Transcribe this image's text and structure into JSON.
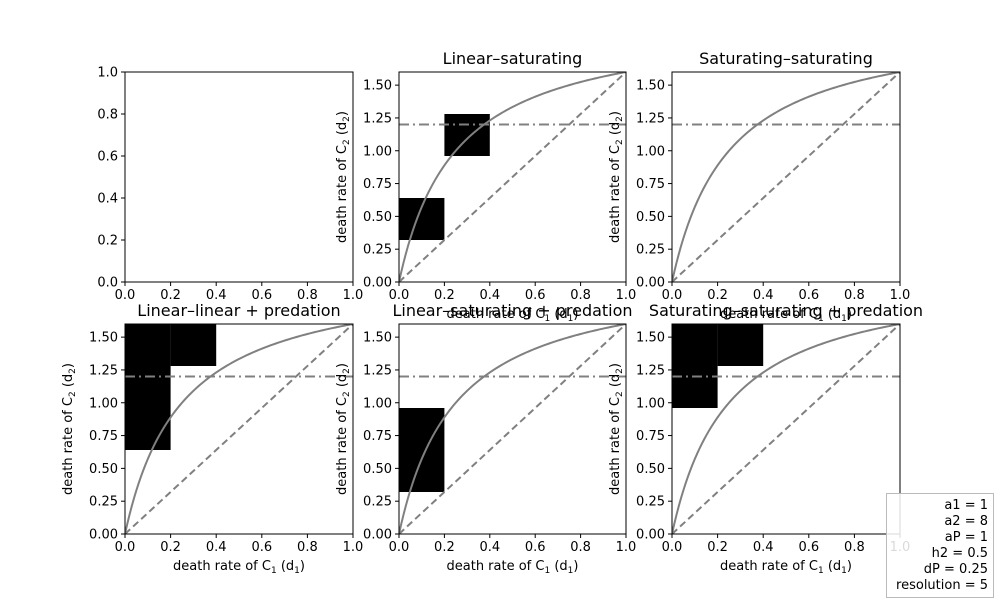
{
  "chart_data": [
    {
      "type": "heatmap",
      "title": "",
      "xlabel": "",
      "ylabel": "",
      "xlim": [
        0,
        1
      ],
      "ylim": [
        0,
        1
      ],
      "xticks": [
        "0.0",
        "0.2",
        "0.4",
        "0.6",
        "0.8",
        "1.0"
      ],
      "yticks": [
        "0.0",
        "0.2",
        "0.4",
        "0.6",
        "0.8",
        "1.0"
      ],
      "cells": [],
      "curves": false
    },
    {
      "type": "heatmap",
      "title": "Linear–saturating",
      "xlabel": "death rate of C₁ (d₁)",
      "ylabel": "death rate of C₂ (d₂)",
      "xlim": [
        0,
        1
      ],
      "ylim": [
        0,
        1.6
      ],
      "xticks": [
        "0.0",
        "0.2",
        "0.4",
        "0.6",
        "0.8",
        "1.0"
      ],
      "yticks": [
        "0.00",
        "0.25",
        "0.50",
        "0.75",
        "1.00",
        "1.25",
        "1.50"
      ],
      "cells": [
        {
          "x0": 0.0,
          "x1": 0.2,
          "y0": 0.32,
          "y1": 0.64
        },
        {
          "x0": 0.2,
          "x1": 0.4,
          "y0": 0.96,
          "y1": 1.28
        }
      ],
      "curves": true
    },
    {
      "type": "heatmap",
      "title": "Saturating–saturating",
      "xlabel": "death rate of C₁ (d₁)",
      "ylabel": "death rate of C₂ (d₂)",
      "xlim": [
        0,
        1
      ],
      "ylim": [
        0,
        1.6
      ],
      "xticks": [
        "0.0",
        "0.2",
        "0.4",
        "0.6",
        "0.8",
        "1.0"
      ],
      "yticks": [
        "0.00",
        "0.25",
        "0.50",
        "0.75",
        "1.00",
        "1.25",
        "1.50"
      ],
      "cells": [],
      "curves": true
    },
    {
      "type": "heatmap",
      "title": "Linear–linear + predation",
      "xlabel": "death rate of C₁ (d₁)",
      "ylabel": "death rate of C₂ (d₂)",
      "xlim": [
        0,
        1
      ],
      "ylim": [
        0,
        1.6
      ],
      "xticks": [
        "0.0",
        "0.2",
        "0.4",
        "0.6",
        "0.8",
        "1.0"
      ],
      "yticks": [
        "0.00",
        "0.25",
        "0.50",
        "0.75",
        "1.00",
        "1.25",
        "1.50"
      ],
      "cells": [
        {
          "x0": 0.0,
          "x1": 0.2,
          "y0": 0.64,
          "y1": 1.6
        },
        {
          "x0": 0.2,
          "x1": 0.4,
          "y0": 1.28,
          "y1": 1.6
        }
      ],
      "curves": true
    },
    {
      "type": "heatmap",
      "title": "Linear–saturating + predation",
      "xlabel": "death rate of C₁ (d₁)",
      "ylabel": "death rate of C₂ (d₂)",
      "xlim": [
        0,
        1
      ],
      "ylim": [
        0,
        1.6
      ],
      "xticks": [
        "0.0",
        "0.2",
        "0.4",
        "0.6",
        "0.8",
        "1.0"
      ],
      "yticks": [
        "0.00",
        "0.25",
        "0.50",
        "0.75",
        "1.00",
        "1.25",
        "1.50"
      ],
      "cells": [
        {
          "x0": 0.0,
          "x1": 0.2,
          "y0": 0.32,
          "y1": 0.96
        }
      ],
      "curves": true
    },
    {
      "type": "heatmap",
      "title": "Saturating–saturating + predation",
      "xlabel": "death rate of C₁ (d₁)",
      "ylabel": "death rate of C₂ (d₂)",
      "xlim": [
        0,
        1
      ],
      "ylim": [
        0,
        1.6
      ],
      "xticks": [
        "0.0",
        "0.2",
        "0.4",
        "0.6",
        "0.8",
        "1.0"
      ],
      "yticks": [
        "0.00",
        "0.25",
        "0.50",
        "0.75",
        "1.00",
        "1.25",
        "1.50"
      ],
      "cells": [
        {
          "x0": 0.0,
          "x1": 0.2,
          "y0": 0.96,
          "y1": 1.6
        },
        {
          "x0": 0.2,
          "x1": 0.4,
          "y0": 1.28,
          "y1": 1.6
        }
      ],
      "curves": true
    }
  ],
  "overlay": {
    "saturating_curve_yinf": 2.0,
    "saturating_curve_k": 0.25,
    "diagonal_slope": 1.6,
    "horizontal_line_y": 1.2,
    "line_color": "#808080",
    "cell_color": "#000000"
  },
  "params": [
    "a1 = 1",
    "a2 = 8",
    "aP = 1",
    "h2 = 0.5",
    "dP = 0.25",
    "resolution = 5"
  ]
}
